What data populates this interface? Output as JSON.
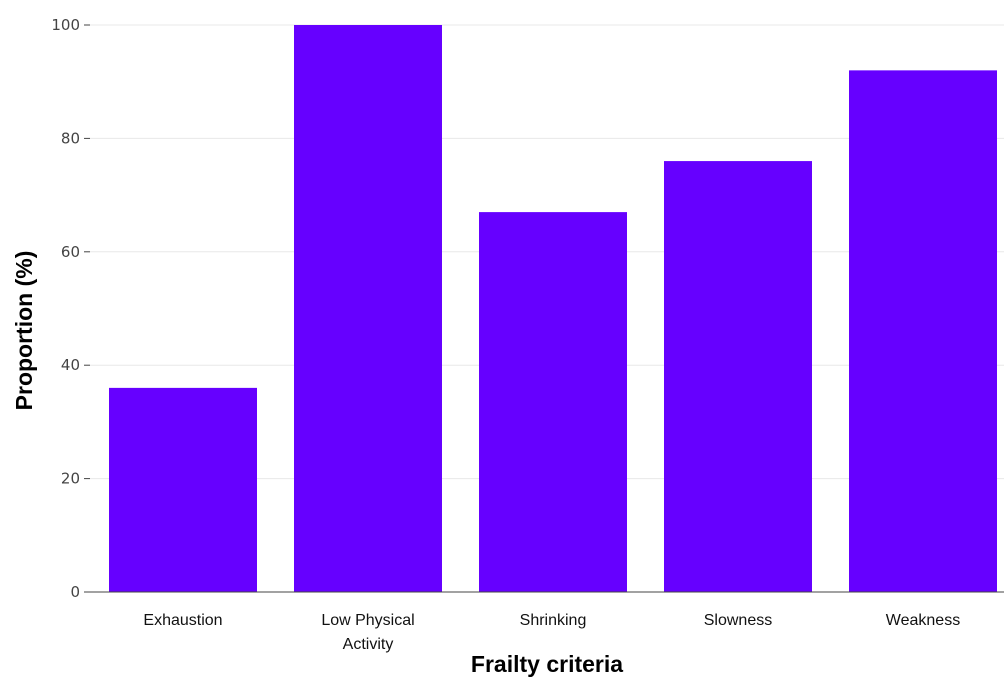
{
  "chart_data": {
    "type": "bar",
    "title": "",
    "xlabel": "Frailty criteria",
    "ylabel": "Proportion (%)",
    "categories": [
      [
        "Exhaustion"
      ],
      [
        "Low Physical",
        "Activity"
      ],
      [
        "Shrinking"
      ],
      [
        "Slowness"
      ],
      [
        "Weakness"
      ]
    ],
    "values": [
      36,
      100,
      67,
      76,
      92
    ],
    "ylim": [
      0,
      100
    ],
    "yticks": [
      "0",
      "20",
      "40",
      "60",
      "80",
      "100"
    ],
    "grid": true,
    "legend": "none",
    "bar_color": "#6600ff"
  }
}
